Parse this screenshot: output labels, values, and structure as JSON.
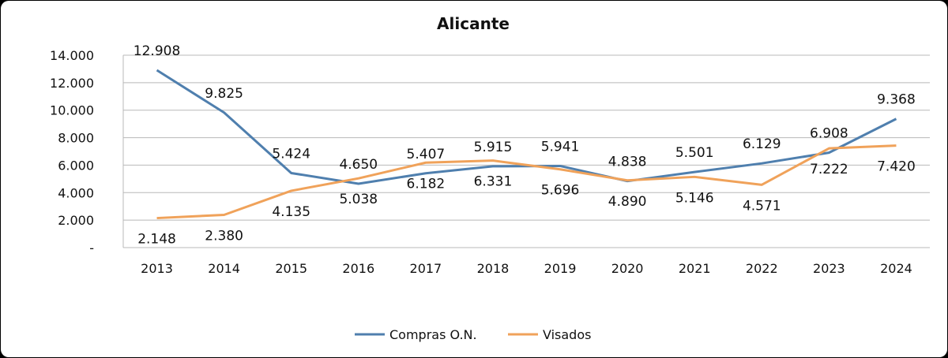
{
  "chart_data": {
    "type": "line",
    "title": "Alicante",
    "categories": [
      "2013",
      "2014",
      "2015",
      "2016",
      "2017",
      "2018",
      "2019",
      "2020",
      "2021",
      "2022",
      "2023",
      "2024"
    ],
    "series": [
      {
        "name": "Compras O.N.",
        "color": "#4f7fae",
        "values": [
          12908,
          9825,
          5424,
          4650,
          5407,
          5915,
          5941,
          4838,
          5501,
          6129,
          6908,
          9368
        ],
        "labels": [
          "12.908",
          "9.825",
          "5.424",
          "4.650",
          "5.407",
          "5.915",
          "5.941",
          "4.838",
          "5.501",
          "6.129",
          "6.908",
          "9.368"
        ]
      },
      {
        "name": "Visados",
        "color": "#f0a25a",
        "values": [
          2148,
          2380,
          4135,
          5038,
          6182,
          6331,
          5696,
          4890,
          5146,
          4571,
          7222,
          7420
        ],
        "labels": [
          "2.148",
          "2.380",
          "4.135",
          "5.038",
          "6.182",
          "6.331",
          "5.696",
          "4.890",
          "5.146",
          "4.571",
          "7.222",
          "7.420"
        ]
      }
    ],
    "yticks": [
      0,
      2000,
      4000,
      6000,
      8000,
      10000,
      12000,
      14000
    ],
    "ytick_labels": [
      "-",
      "2.000",
      "4.000",
      "6.000",
      "8.000",
      "10.000",
      "12.000",
      "14.000"
    ],
    "ylim": [
      0,
      14000
    ],
    "grid": true,
    "legend": "bottom"
  }
}
